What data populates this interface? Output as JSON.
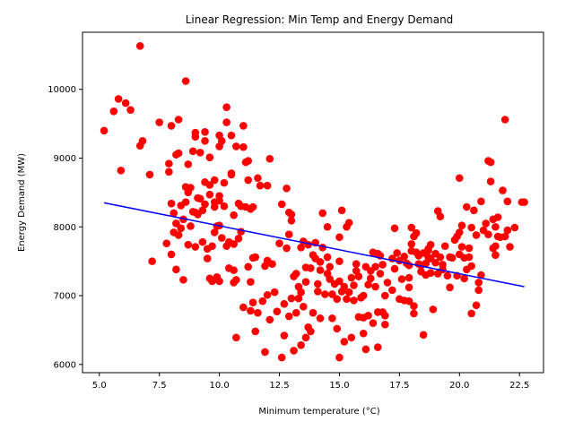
{
  "chart_data": {
    "type": "scatter",
    "title": "Linear Regression: Min Temp and Energy Demand",
    "xlabel": "Minimum temperature (°C)",
    "ylabel": "Energy Demand (MW)",
    "xlim": [
      4.3,
      23.5
    ],
    "ylim": [
      5880,
      10830
    ],
    "x_ticks": [
      "5.0",
      "7.5",
      "10.0",
      "12.5",
      "15.0",
      "17.5",
      "20.0",
      "22.5"
    ],
    "y_ticks": [
      "6000",
      "7000",
      "8000",
      "9000",
      "10000"
    ],
    "grid": false,
    "colors": {
      "points": "#ff0000",
      "regression": "#0000ff",
      "axes": "#000000"
    },
    "regression": {
      "x": [
        5.2,
        22.7
      ],
      "y": [
        8350,
        7130
      ]
    },
    "points": [
      [
        5.2,
        9400
      ],
      [
        5.6,
        9680
      ],
      [
        5.8,
        9860
      ],
      [
        5.9,
        8820
      ],
      [
        6.1,
        9800
      ],
      [
        6.3,
        9700
      ],
      [
        6.7,
        10630
      ],
      [
        6.7,
        9180
      ],
      [
        6.8,
        9250
      ],
      [
        7.1,
        8760
      ],
      [
        7.2,
        7500
      ],
      [
        7.5,
        9520
      ],
      [
        7.8,
        7760
      ],
      [
        7.9,
        8920
      ],
      [
        7.9,
        8800
      ],
      [
        8.0,
        9470
      ],
      [
        8.0,
        8340
      ],
      [
        8.0,
        7600
      ],
      [
        8.1,
        8200
      ],
      [
        8.1,
        7920
      ],
      [
        8.2,
        9050
      ],
      [
        8.2,
        8050
      ],
      [
        8.2,
        7380
      ],
      [
        8.3,
        9560
      ],
      [
        8.3,
        9070
      ],
      [
        8.3,
        7880
      ],
      [
        8.4,
        8310
      ],
      [
        8.4,
        7980
      ],
      [
        8.5,
        7230
      ],
      [
        8.5,
        8110
      ],
      [
        8.6,
        8580
      ],
      [
        8.6,
        8360
      ],
      [
        8.6,
        10120
      ],
      [
        8.7,
        8910
      ],
      [
        8.7,
        8500
      ],
      [
        8.7,
        7740
      ],
      [
        8.8,
        8570
      ],
      [
        8.8,
        8010
      ],
      [
        8.9,
        9100
      ],
      [
        8.9,
        8220
      ],
      [
        9.0,
        9370
      ],
      [
        9.0,
        9310
      ],
      [
        9.0,
        8210
      ],
      [
        9.0,
        7710
      ],
      [
        9.1,
        8420
      ],
      [
        9.1,
        8180
      ],
      [
        9.2,
        9080
      ],
      [
        9.2,
        8410
      ],
      [
        9.3,
        7780
      ],
      [
        9.3,
        8240
      ],
      [
        9.4,
        9380
      ],
      [
        9.4,
        8650
      ],
      [
        9.4,
        9250
      ],
      [
        9.4,
        8330
      ],
      [
        9.5,
        7680
      ],
      [
        9.5,
        7540
      ],
      [
        9.6,
        9010
      ],
      [
        9.6,
        8610
      ],
      [
        9.6,
        8470
      ],
      [
        9.6,
        7250
      ],
      [
        9.7,
        7210
      ],
      [
        9.7,
        7720
      ],
      [
        9.8,
        8680
      ],
      [
        9.8,
        8360
      ],
      [
        9.8,
        8290
      ],
      [
        9.8,
        7920
      ],
      [
        9.9,
        7270
      ],
      [
        9.9,
        8010
      ],
      [
        10.0,
        9170
      ],
      [
        10.0,
        9330
      ],
      [
        10.0,
        8450
      ],
      [
        10.0,
        8380
      ],
      [
        10.0,
        8020
      ],
      [
        10.0,
        7210
      ],
      [
        10.1,
        9250
      ],
      [
        10.1,
        7840
      ],
      [
        10.2,
        8640
      ],
      [
        10.2,
        8300
      ],
      [
        10.3,
        9740
      ],
      [
        10.3,
        9520
      ],
      [
        10.3,
        7720
      ],
      [
        10.4,
        7400
      ],
      [
        10.4,
        7780
      ],
      [
        10.5,
        9330
      ],
      [
        10.5,
        8780
      ],
      [
        10.5,
        8760
      ],
      [
        10.6,
        7190
      ],
      [
        10.6,
        7370
      ],
      [
        10.6,
        7750
      ],
      [
        10.6,
        8170
      ],
      [
        10.7,
        6390
      ],
      [
        10.7,
        7230
      ],
      [
        10.7,
        9170
      ],
      [
        10.8,
        7830
      ],
      [
        10.8,
        8340
      ],
      [
        10.9,
        8300
      ],
      [
        10.9,
        7930
      ],
      [
        11.0,
        9470
      ],
      [
        11.0,
        9160
      ],
      [
        11.0,
        6830
      ],
      [
        11.1,
        8940
      ],
      [
        11.1,
        8290
      ],
      [
        11.2,
        7420
      ],
      [
        11.2,
        8680
      ],
      [
        11.2,
        8960
      ],
      [
        11.3,
        7200
      ],
      [
        11.3,
        6780
      ],
      [
        11.3,
        8260
      ],
      [
        11.4,
        6900
      ],
      [
        11.4,
        7550
      ],
      [
        11.4,
        8290
      ],
      [
        11.5,
        6480
      ],
      [
        11.5,
        7560
      ],
      [
        11.6,
        6750
      ],
      [
        11.6,
        8710
      ],
      [
        11.7,
        8600
      ],
      [
        11.8,
        6920
      ],
      [
        11.9,
        7430
      ],
      [
        11.9,
        6180
      ],
      [
        12.0,
        8600
      ],
      [
        12.0,
        7010
      ],
      [
        12.0,
        7510
      ],
      [
        12.1,
        6650
      ],
      [
        12.1,
        8990
      ],
      [
        12.2,
        7460
      ],
      [
        12.3,
        7050
      ],
      [
        12.4,
        6770
      ],
      [
        12.5,
        7760
      ],
      [
        12.6,
        8330
      ],
      [
        12.6,
        6100
      ],
      [
        12.7,
        6420
      ],
      [
        12.7,
        6880
      ],
      [
        12.8,
        8560
      ],
      [
        12.8,
        7690
      ],
      [
        12.9,
        7890
      ],
      [
        12.9,
        8210
      ],
      [
        12.9,
        6700
      ],
      [
        13.0,
        6960
      ],
      [
        13.0,
        8180
      ],
      [
        13.0,
        8090
      ],
      [
        13.1,
        7280
      ],
      [
        13.1,
        6200
      ],
      [
        13.2,
        7320
      ],
      [
        13.2,
        6750
      ],
      [
        13.3,
        7130
      ],
      [
        13.3,
        6960
      ],
      [
        13.4,
        7700
      ],
      [
        13.4,
        6280
      ],
      [
        13.4,
        7050
      ],
      [
        13.5,
        7790
      ],
      [
        13.5,
        6840
      ],
      [
        13.6,
        6390
      ],
      [
        13.6,
        7410
      ],
      [
        13.6,
        7200
      ],
      [
        13.7,
        7740
      ],
      [
        13.7,
        6540
      ],
      [
        13.8,
        6480
      ],
      [
        13.8,
        7400
      ],
      [
        13.9,
        7590
      ],
      [
        13.9,
        6750
      ],
      [
        14.0,
        7770
      ],
      [
        14.0,
        7540
      ],
      [
        14.1,
        7170
      ],
      [
        14.1,
        7060
      ],
      [
        14.2,
        7490
      ],
      [
        14.2,
        7370
      ],
      [
        14.2,
        6670
      ],
      [
        14.3,
        7700
      ],
      [
        14.3,
        8200
      ],
      [
        14.4,
        7020
      ],
      [
        14.5,
        7560
      ],
      [
        14.5,
        7320
      ],
      [
        14.5,
        8000
      ],
      [
        14.6,
        7420
      ],
      [
        14.6,
        7240
      ],
      [
        14.7,
        7020
      ],
      [
        14.7,
        6670
      ],
      [
        14.8,
        7170
      ],
      [
        14.9,
        6950
      ],
      [
        14.9,
        6520
      ],
      [
        15.0,
        7500
      ],
      [
        15.0,
        7210
      ],
      [
        15.0,
        7850
      ],
      [
        15.0,
        6100
      ],
      [
        15.1,
        7060
      ],
      [
        15.1,
        8240
      ],
      [
        15.2,
        7130
      ],
      [
        15.2,
        6330
      ],
      [
        15.3,
        8000
      ],
      [
        15.3,
        6950
      ],
      [
        15.4,
        7050
      ],
      [
        15.4,
        8060
      ],
      [
        15.5,
        7260
      ],
      [
        15.5,
        6390
      ],
      [
        15.6,
        7150
      ],
      [
        15.6,
        6930
      ],
      [
        15.7,
        7360
      ],
      [
        15.7,
        7460
      ],
      [
        15.8,
        6690
      ],
      [
        15.8,
        7280
      ],
      [
        15.9,
        6970
      ],
      [
        16.0,
        6680
      ],
      [
        16.0,
        6450
      ],
      [
        16.0,
        7000
      ],
      [
        16.1,
        7420
      ],
      [
        16.1,
        6220
      ],
      [
        16.2,
        6710
      ],
      [
        16.2,
        7160
      ],
      [
        16.3,
        7360
      ],
      [
        16.3,
        7250
      ],
      [
        16.4,
        6600
      ],
      [
        16.4,
        7630
      ],
      [
        16.5,
        7420
      ],
      [
        16.5,
        7130
      ],
      [
        16.6,
        7610
      ],
      [
        16.6,
        6250
      ],
      [
        16.6,
        6760
      ],
      [
        16.7,
        7580
      ],
      [
        16.7,
        7320
      ],
      [
        16.8,
        7450
      ],
      [
        16.8,
        6760
      ],
      [
        16.9,
        7000
      ],
      [
        16.9,
        6580
      ],
      [
        16.9,
        6710
      ],
      [
        17.0,
        7190
      ],
      [
        17.2,
        7080
      ],
      [
        17.2,
        7540
      ],
      [
        17.3,
        7980
      ],
      [
        17.3,
        7390
      ],
      [
        17.4,
        7620
      ],
      [
        17.5,
        6950
      ],
      [
        17.5,
        7510
      ],
      [
        17.6,
        7240
      ],
      [
        17.7,
        6930
      ],
      [
        17.7,
        7570
      ],
      [
        17.8,
        7470
      ],
      [
        17.9,
        7440
      ],
      [
        17.9,
        7260
      ],
      [
        17.9,
        6920
      ],
      [
        17.9,
        7120
      ],
      [
        18.0,
        7750
      ],
      [
        18.0,
        7650
      ],
      [
        18.0,
        7990
      ],
      [
        18.1,
        6850
      ],
      [
        18.1,
        6740
      ],
      [
        18.1,
        7860
      ],
      [
        18.2,
        7630
      ],
      [
        18.2,
        7910
      ],
      [
        18.3,
        7460
      ],
      [
        18.3,
        7580
      ],
      [
        18.4,
        7350
      ],
      [
        18.4,
        7440
      ],
      [
        18.5,
        6430
      ],
      [
        18.5,
        7620
      ],
      [
        18.6,
        7300
      ],
      [
        18.6,
        7470
      ],
      [
        18.7,
        7660
      ],
      [
        18.7,
        7560
      ],
      [
        18.7,
        7680
      ],
      [
        18.8,
        7740
      ],
      [
        18.8,
        7330
      ],
      [
        18.8,
        7540
      ],
      [
        18.9,
        6800
      ],
      [
        19.0,
        7480
      ],
      [
        19.0,
        7610
      ],
      [
        19.1,
        8230
      ],
      [
        19.1,
        7320
      ],
      [
        19.2,
        8150
      ],
      [
        19.2,
        7560
      ],
      [
        19.3,
        7450
      ],
      [
        19.3,
        7380
      ],
      [
        19.4,
        7720
      ],
      [
        19.5,
        7290
      ],
      [
        19.6,
        7560
      ],
      [
        19.6,
        7120
      ],
      [
        19.7,
        7550
      ],
      [
        19.8,
        7810
      ],
      [
        19.9,
        7290
      ],
      [
        19.9,
        7860
      ],
      [
        20.0,
        8710
      ],
      [
        20.0,
        7920
      ],
      [
        20.0,
        7600
      ],
      [
        20.1,
        7710
      ],
      [
        20.1,
        8020
      ],
      [
        20.2,
        7250
      ],
      [
        20.2,
        7550
      ],
      [
        20.3,
        8290
      ],
      [
        20.3,
        7380
      ],
      [
        20.4,
        7560
      ],
      [
        20.4,
        7690
      ],
      [
        20.5,
        7990
      ],
      [
        20.5,
        7430
      ],
      [
        20.5,
        6740
      ],
      [
        20.6,
        8240
      ],
      [
        20.7,
        7880
      ],
      [
        20.7,
        6860
      ],
      [
        20.8,
        7190
      ],
      [
        20.8,
        7080
      ],
      [
        20.9,
        7300
      ],
      [
        20.9,
        8370
      ],
      [
        21.0,
        7950
      ],
      [
        21.1,
        8050
      ],
      [
        21.2,
        8960
      ],
      [
        21.2,
        7890
      ],
      [
        21.3,
        8660
      ],
      [
        21.3,
        8940
      ],
      [
        21.4,
        7690
      ],
      [
        21.4,
        8110
      ],
      [
        21.5,
        7590
      ],
      [
        21.5,
        8000
      ],
      [
        21.5,
        7720
      ],
      [
        21.6,
        8140
      ],
      [
        21.6,
        7860
      ],
      [
        21.7,
        7850
      ],
      [
        21.8,
        8530
      ],
      [
        21.9,
        9560
      ],
      [
        21.9,
        7860
      ],
      [
        22.0,
        8370
      ],
      [
        22.0,
        7950
      ],
      [
        22.1,
        7710
      ],
      [
        22.3,
        7990
      ],
      [
        22.6,
        8360
      ],
      [
        22.7,
        8360
      ]
    ]
  }
}
